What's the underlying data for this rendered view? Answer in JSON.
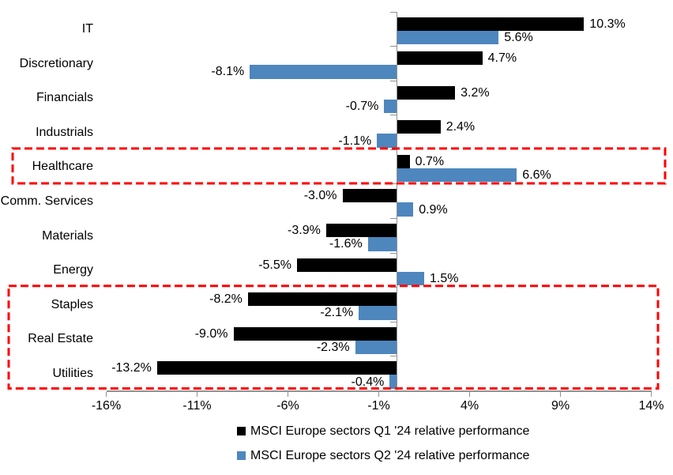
{
  "chart_data": {
    "type": "bar",
    "orientation": "horizontal",
    "title": "",
    "xlabel": "",
    "ylabel": "",
    "grid": false,
    "legend_position": "bottom",
    "categories": [
      "IT",
      "Discretionary",
      "Financials",
      "Industrials",
      "Healthcare",
      "Comm. Services",
      "Materials",
      "Energy",
      "Staples",
      "Real Estate",
      "Utilities"
    ],
    "series": [
      {
        "name": "MSCI Europe sectors Q1 '24 relative performance",
        "color": "#000000",
        "values": [
          10.3,
          4.7,
          3.2,
          2.4,
          0.7,
          -3.0,
          -3.9,
          -5.5,
          -8.2,
          -9.0,
          -13.2
        ],
        "labels": [
          "10.3%",
          "4.7%",
          "3.2%",
          "2.4%",
          "0.7%",
          "-3.0%",
          "-3.9%",
          "-5.5%",
          "-8.2%",
          "-9.0%",
          "-13.2%"
        ]
      },
      {
        "name": "MSCI Europe sectors Q2 '24 relative performance",
        "color": "#4E86BE",
        "values": [
          5.6,
          -8.1,
          -0.7,
          -1.1,
          6.6,
          0.9,
          -1.6,
          1.5,
          -2.1,
          -2.3,
          -0.4
        ],
        "labels": [
          "5.6%",
          "-8.1%",
          "-0.7%",
          "-1.1%",
          "6.6%",
          "0.9%",
          "-1.6%",
          "1.5%",
          "-2.1%",
          "-2.3%",
          "-0.4%"
        ]
      }
    ],
    "x_axis": {
      "min": -16,
      "max": 14,
      "tick_values": [
        -16,
        -11,
        -6,
        -1,
        4,
        9,
        14
      ],
      "tick_labels": [
        "-16%",
        "-11%",
        "-6%",
        "-1%",
        "4%",
        "9%",
        "14%"
      ]
    },
    "highlight_boxes": [
      {
        "name": "healthcare-highlight",
        "row_start": 4,
        "row_end": 4,
        "color": "#FF0000"
      },
      {
        "name": "defensive-sectors-highlight",
        "row_start": 8,
        "row_end": 10,
        "color": "#FF0000"
      }
    ]
  }
}
